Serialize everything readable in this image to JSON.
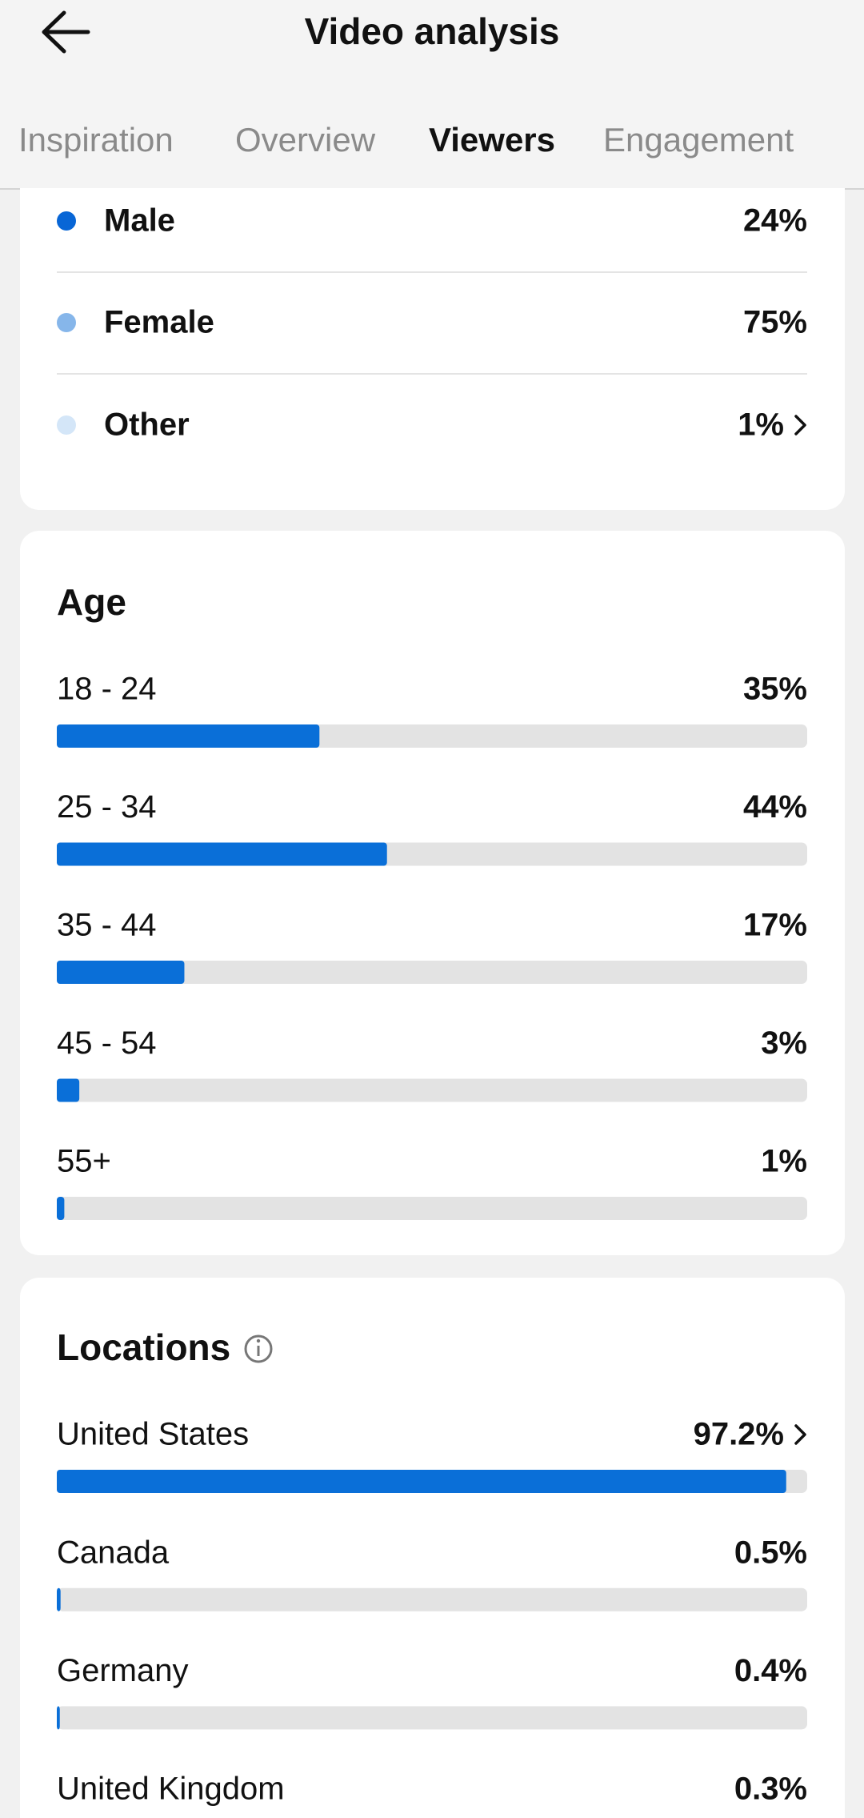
{
  "header": {
    "title": "Video analysis"
  },
  "tabs": [
    "Inspiration",
    "Overview",
    "Viewers",
    "Engagement"
  ],
  "gender": {
    "items": [
      {
        "label": "Male",
        "value": "24%"
      },
      {
        "label": "Female",
        "value": "75%"
      },
      {
        "label": "Other",
        "value": "1%"
      }
    ]
  },
  "age": {
    "title": "Age",
    "items": [
      {
        "label": "18 - 24",
        "value": 35,
        "value_label": "35%"
      },
      {
        "label": "25 - 34",
        "value": 44,
        "value_label": "44%"
      },
      {
        "label": "35 - 44",
        "value": 17,
        "value_label": "17%"
      },
      {
        "label": "45 - 54",
        "value": 3,
        "value_label": "3%"
      },
      {
        "label": "55+",
        "value": 1,
        "value_label": "1%"
      }
    ]
  },
  "locations": {
    "title": "Locations",
    "items": [
      {
        "label": "United States",
        "value": 97.2,
        "value_label": "97.2%"
      },
      {
        "label": "Canada",
        "value": 0.5,
        "value_label": "0.5%"
      },
      {
        "label": "Germany",
        "value": 0.4,
        "value_label": "0.4%"
      },
      {
        "label": "United Kingdom",
        "value": 0.3,
        "value_label": "0.3%"
      }
    ]
  }
}
